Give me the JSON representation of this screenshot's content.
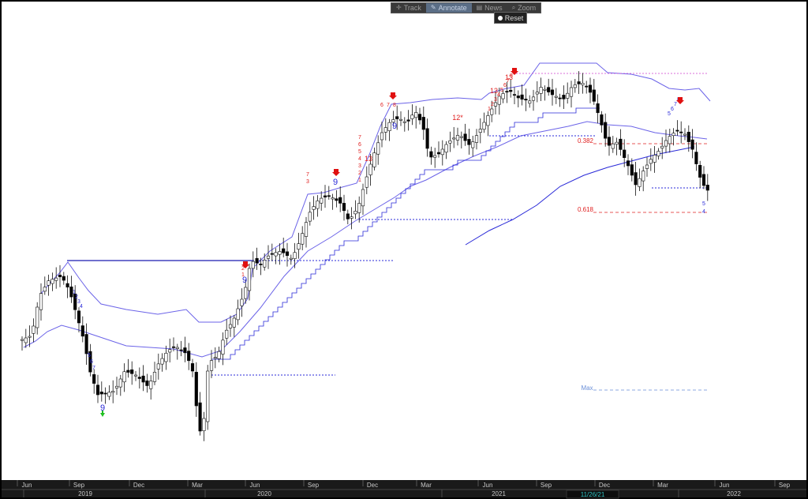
{
  "toolbar": {
    "buttons": [
      {
        "label": "Track",
        "icon": "crosshair-icon"
      },
      {
        "label": "Annotate",
        "icon": "pencil-icon"
      },
      {
        "label": "News",
        "icon": "news-icon"
      },
      {
        "label": "Zoom",
        "icon": "magnifier-icon"
      }
    ],
    "active": "Annotate",
    "reset_label": "Reset"
  },
  "chart_data": {
    "type": "candlestick",
    "x": {
      "month_ticks": [
        "Jun",
        "Sep",
        "Dec",
        "Mar",
        "Jun",
        "Sep",
        "Dec",
        "Mar",
        "Jun",
        "Sep",
        "Dec",
        "Mar",
        "Jun",
        "Sep"
      ],
      "year_labels": [
        "2019",
        "2020",
        "2021",
        "2022"
      ],
      "cursor_date": "11/26/21"
    },
    "fib_levels": [
      {
        "label": "0.382"
      },
      {
        "label": "0.618"
      },
      {
        "label": "Max"
      }
    ],
    "td_counts_visible": [
      "9",
      "9",
      "9",
      "9",
      "13",
      "13",
      "12*",
      "13"
    ],
    "grid": false,
    "colors": {
      "background": "#ffffff",
      "up": "#ffffff",
      "down": "#000000",
      "envelope": "#6b63e8",
      "support": "#2a2ad8",
      "fib": "#e02020"
    }
  }
}
